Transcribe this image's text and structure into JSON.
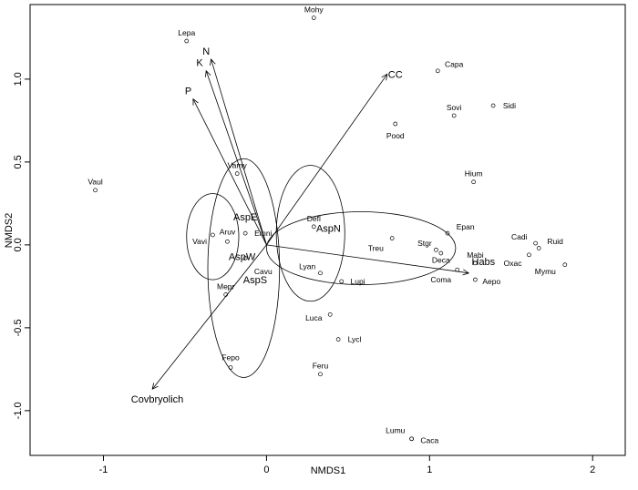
{
  "chart_data": {
    "type": "scatter",
    "title": "",
    "xlabel": "NMDS1",
    "ylabel": "NMDS2",
    "xlim": [
      -1.45,
      2.2
    ],
    "ylim": [
      -1.27,
      1.45
    ],
    "x_ticks": [
      -1,
      0,
      1,
      2
    ],
    "x_tick_labels": [
      "-1",
      "0",
      "1",
      "2"
    ],
    "y_ticks": [
      -1.0,
      -0.5,
      0.0,
      0.5,
      1.0
    ],
    "y_tick_labels": [
      "-1.0",
      "-0.5",
      "0.0",
      "0.5",
      "1.0"
    ],
    "grid": false,
    "legend": "none",
    "sites": [
      {
        "label": "Mohy",
        "x": 0.29,
        "y": 1.37,
        "lx": 0.29,
        "ly": 1.42
      },
      {
        "label": "Lepa",
        "x": -0.49,
        "y": 1.23,
        "lx": -0.49,
        "ly": 1.28
      },
      {
        "label": "Capa",
        "x": 1.05,
        "y": 1.05,
        "lx": 1.15,
        "ly": 1.09
      },
      {
        "label": "Sovi",
        "x": 1.15,
        "y": 0.78,
        "lx": 1.15,
        "ly": 0.83
      },
      {
        "label": "Sidi",
        "x": 1.39,
        "y": 0.84,
        "lx": 1.49,
        "ly": 0.84
      },
      {
        "label": "Pood",
        "x": 0.79,
        "y": 0.73,
        "lx": 0.79,
        "ly": 0.66
      },
      {
        "label": "Hium",
        "x": 1.27,
        "y": 0.38,
        "lx": 1.27,
        "ly": 0.43
      },
      {
        "label": "Vaul",
        "x": -1.05,
        "y": 0.33,
        "lx": -1.05,
        "ly": 0.38
      },
      {
        "label": "Vamy",
        "x": -0.18,
        "y": 0.43,
        "lx": -0.18,
        "ly": 0.48
      },
      {
        "label": "Defl",
        "x": 0.29,
        "y": 0.11,
        "lx": 0.29,
        "ly": 0.16
      },
      {
        "label": "Epan",
        "x": 1.11,
        "y": 0.07,
        "lx": 1.22,
        "ly": 0.11
      },
      {
        "label": "Cadi",
        "x": 1.65,
        "y": 0.01,
        "lx": 1.55,
        "ly": 0.05
      },
      {
        "label": "Ruid",
        "x": 1.67,
        "y": -0.02,
        "lx": 1.77,
        "ly": 0.02
      },
      {
        "label": "Aruv",
        "x": -0.24,
        "y": 0.02,
        "lx": -0.24,
        "ly": 0.08
      },
      {
        "label": "Vavi",
        "x": -0.33,
        "y": 0.06,
        "lx": -0.41,
        "ly": 0.02
      },
      {
        "label": "Emni",
        "x": -0.13,
        "y": 0.07,
        "lx": -0.02,
        "ly": 0.07
      },
      {
        "label": "Treu",
        "x": 0.77,
        "y": 0.04,
        "lx": 0.67,
        "ly": -0.02
      },
      {
        "label": "Stgr",
        "x": 1.04,
        "y": -0.03,
        "lx": 0.97,
        "ly": 0.01
      },
      {
        "label": "Deca",
        "x": 1.07,
        "y": -0.05,
        "lx": 1.07,
        "ly": -0.09
      },
      {
        "label": "Mabi",
        "x": 1.28,
        "y": -0.11,
        "lx": 1.28,
        "ly": -0.06
      },
      {
        "label": "Oxac",
        "x": 1.61,
        "y": -0.06,
        "lx": 1.51,
        "ly": -0.11
      },
      {
        "label": "Mymu",
        "x": 1.83,
        "y": -0.12,
        "lx": 1.71,
        "ly": -0.16
      },
      {
        "label": "Coma",
        "x": 1.17,
        "y": -0.15,
        "lx": 1.07,
        "ly": -0.21
      },
      {
        "label": "Aepo",
        "x": 1.28,
        "y": -0.21,
        "lx": 1.38,
        "ly": -0.22
      },
      {
        "label": "Lyan",
        "x": 0.33,
        "y": -0.17,
        "lx": 0.25,
        "ly": -0.13
      },
      {
        "label": "Lupi",
        "x": 0.46,
        "y": -0.22,
        "lx": 0.56,
        "ly": -0.22
      },
      {
        "label": "Cavu",
        "x": -0.13,
        "y": -0.08,
        "lx": -0.02,
        "ly": -0.16
      },
      {
        "label": "Mepr",
        "x": -0.25,
        "y": -0.3,
        "lx": -0.25,
        "ly": -0.25
      },
      {
        "label": "Luca",
        "x": 0.39,
        "y": -0.42,
        "lx": 0.29,
        "ly": -0.44
      },
      {
        "label": "Lycl",
        "x": 0.44,
        "y": -0.57,
        "lx": 0.54,
        "ly": -0.57
      },
      {
        "label": "Fepo",
        "x": -0.22,
        "y": -0.74,
        "lx": -0.22,
        "ly": -0.68
      },
      {
        "label": "Feru",
        "x": 0.33,
        "y": -0.78,
        "lx": 0.33,
        "ly": -0.73
      },
      {
        "label": "Lumu",
        "x": 0.89,
        "y": -1.17,
        "lx": 0.79,
        "ly": -1.12
      },
      {
        "label": "Caca",
        "x": 0.89,
        "y": -1.17,
        "lx": 1.0,
        "ly": -1.18
      }
    ],
    "vectors": [
      {
        "label": "N",
        "x": -0.34,
        "y": 1.12,
        "lx": -0.37,
        "ly": 1.17
      },
      {
        "label": "K",
        "x": -0.37,
        "y": 1.05,
        "lx": -0.41,
        "ly": 1.1
      },
      {
        "label": "P",
        "x": -0.45,
        "y": 0.88,
        "lx": -0.48,
        "ly": 0.93
      },
      {
        "label": "CC",
        "x": 0.74,
        "y": 1.03,
        "lx": 0.79,
        "ly": 1.03
      },
      {
        "label": "Habs",
        "x": 1.24,
        "y": -0.17,
        "lx": 1.33,
        "ly": -0.1
      },
      {
        "label": "Covbryolich",
        "x": -0.7,
        "y": -0.87,
        "lx": -0.67,
        "ly": -0.93
      }
    ],
    "groups": [
      {
        "label": "AspE",
        "cx": -0.33,
        "cy": 0.05,
        "rx": 0.16,
        "ry": 0.26,
        "lx": -0.13,
        "ly": 0.17
      },
      {
        "label": "AspN",
        "cx": 0.27,
        "cy": 0.07,
        "rx": 0.21,
        "ry": 0.41,
        "lx": 0.38,
        "ly": 0.1
      },
      {
        "label": "AspW",
        "cx": -0.14,
        "cy": -0.14,
        "rx": 0.22,
        "ry": 0.66,
        "lx": -0.15,
        "ly": -0.07
      },
      {
        "label": "AspS",
        "cx": 0.58,
        "cy": -0.02,
        "rx": 0.58,
        "ry": 0.22,
        "lx": -0.07,
        "ly": -0.21
      }
    ]
  }
}
